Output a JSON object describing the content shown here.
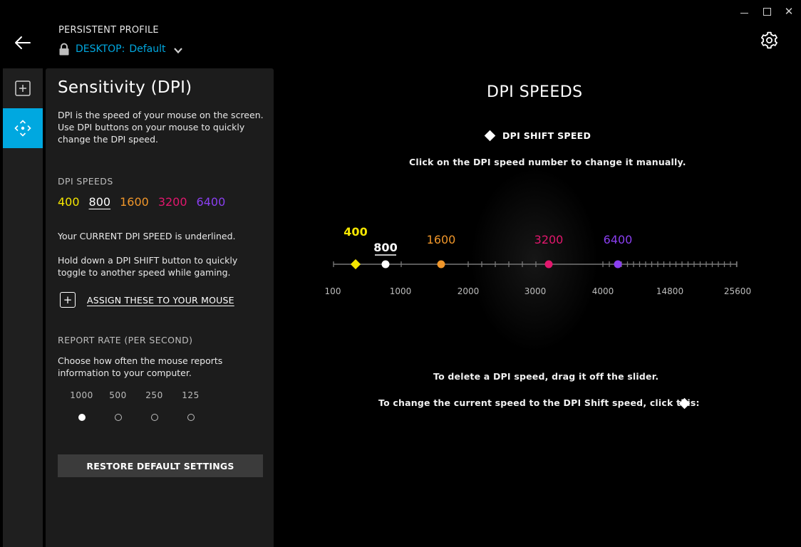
{
  "window": {
    "controls": [
      "minimize",
      "maximize",
      "close"
    ],
    "close_glyph": "✕"
  },
  "header": {
    "back_icon": "arrow-left-icon",
    "profile_label": "PERSISTENT PROFILE",
    "profile_prefix": "DESKTOP:",
    "profile_name": "Default",
    "settings_icon": "gear-icon"
  },
  "rail": {
    "items": [
      {
        "icon": "add-square-icon",
        "active": false
      },
      {
        "icon": "move-arrows-icon",
        "active": true
      }
    ]
  },
  "panel": {
    "title": "Sensitivity (DPI)",
    "description": "DPI is the speed of your mouse on the screen. Use DPI buttons on your mouse to quickly change the DPI speed.",
    "dpi_section_label": "DPI SPEEDS",
    "dpi_speeds": [
      {
        "value": "400",
        "color": "#f5e600",
        "current": false
      },
      {
        "value": "800",
        "color": "#ffffff",
        "current": true
      },
      {
        "value": "1600",
        "color": "#f0962a",
        "current": false
      },
      {
        "value": "3200",
        "color": "#e2176d",
        "current": false
      },
      {
        "value": "6400",
        "color": "#8a3ff0",
        "current": false
      }
    ],
    "current_note": "Your CURRENT DPI SPEED is underlined.",
    "shift_note": "Hold down a DPI SHIFT button to quickly toggle to another speed while gaming.",
    "assign_label": "ASSIGN THESE TO YOUR MOUSE",
    "report_label": "REPORT RATE (PER SECOND)",
    "report_desc": "Choose how often the mouse reports information to your computer.",
    "report_rates": [
      {
        "value": "1000",
        "selected": true
      },
      {
        "value": "500",
        "selected": false
      },
      {
        "value": "250",
        "selected": false
      },
      {
        "value": "125",
        "selected": false
      }
    ],
    "restore_label": "RESTORE DEFAULT SETTINGS"
  },
  "main": {
    "title": "DPI SPEEDS",
    "shift_legend": "DPI SHIFT SPEED",
    "click_hint": "Click on the DPI speed number to change it manually.",
    "delete_hint": "To delete a DPI speed, drag it off the slider.",
    "shift_hint": "To change the current speed to the DPI Shift speed, click this:",
    "slider": {
      "axis_labels": [
        "100",
        "1000",
        "2000",
        "3000",
        "4000",
        "14800",
        "25600"
      ],
      "markers": [
        {
          "label": "400",
          "color": "#f5e600",
          "shape": "diamond",
          "shift": true
        },
        {
          "label": "800",
          "color": "#ffffff",
          "shape": "circle",
          "current": true
        },
        {
          "label": "1600",
          "color": "#f0962a",
          "shape": "circle"
        },
        {
          "label": "3200",
          "color": "#e2176d",
          "shape": "circle"
        },
        {
          "label": "6400",
          "color": "#8a3ff0",
          "shape": "circle"
        }
      ]
    }
  }
}
